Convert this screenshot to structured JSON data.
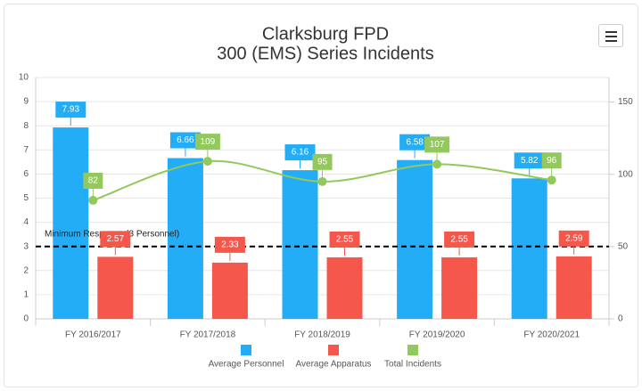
{
  "chart_data": {
    "type": "bar",
    "title": [
      "Clarksburg FPD",
      "300 (EMS) Series Incidents"
    ],
    "categories": [
      "FY 2016/2017",
      "FY 2017/2018",
      "FY 2018/2019",
      "FY 2019/2020",
      "FY 2020/2021"
    ],
    "series": [
      {
        "name": "Average Personnel",
        "type": "bar",
        "color": "#22adf6",
        "values": [
          7.93,
          6.66,
          6.16,
          6.58,
          5.82
        ]
      },
      {
        "name": "Average Apparatus",
        "type": "bar",
        "color": "#f5584b",
        "values": [
          2.57,
          2.33,
          2.55,
          2.55,
          2.59
        ]
      },
      {
        "name": "Total Incidents",
        "type": "line",
        "axis": "y2",
        "color": "#93c95c",
        "values": [
          82,
          109,
          95,
          107,
          96
        ]
      }
    ],
    "ylim": [
      0,
      10
    ],
    "yticks": [
      0,
      1,
      2,
      3,
      4,
      5,
      6,
      7,
      8,
      9,
      10
    ],
    "y2lim": [
      0,
      167
    ],
    "y2ticks": [
      0,
      50,
      100,
      150
    ],
    "grid": true,
    "plot_lines": [
      {
        "value": 3,
        "label": "Minimum Response (3 Personnel)"
      }
    ],
    "legend": "bottom"
  }
}
